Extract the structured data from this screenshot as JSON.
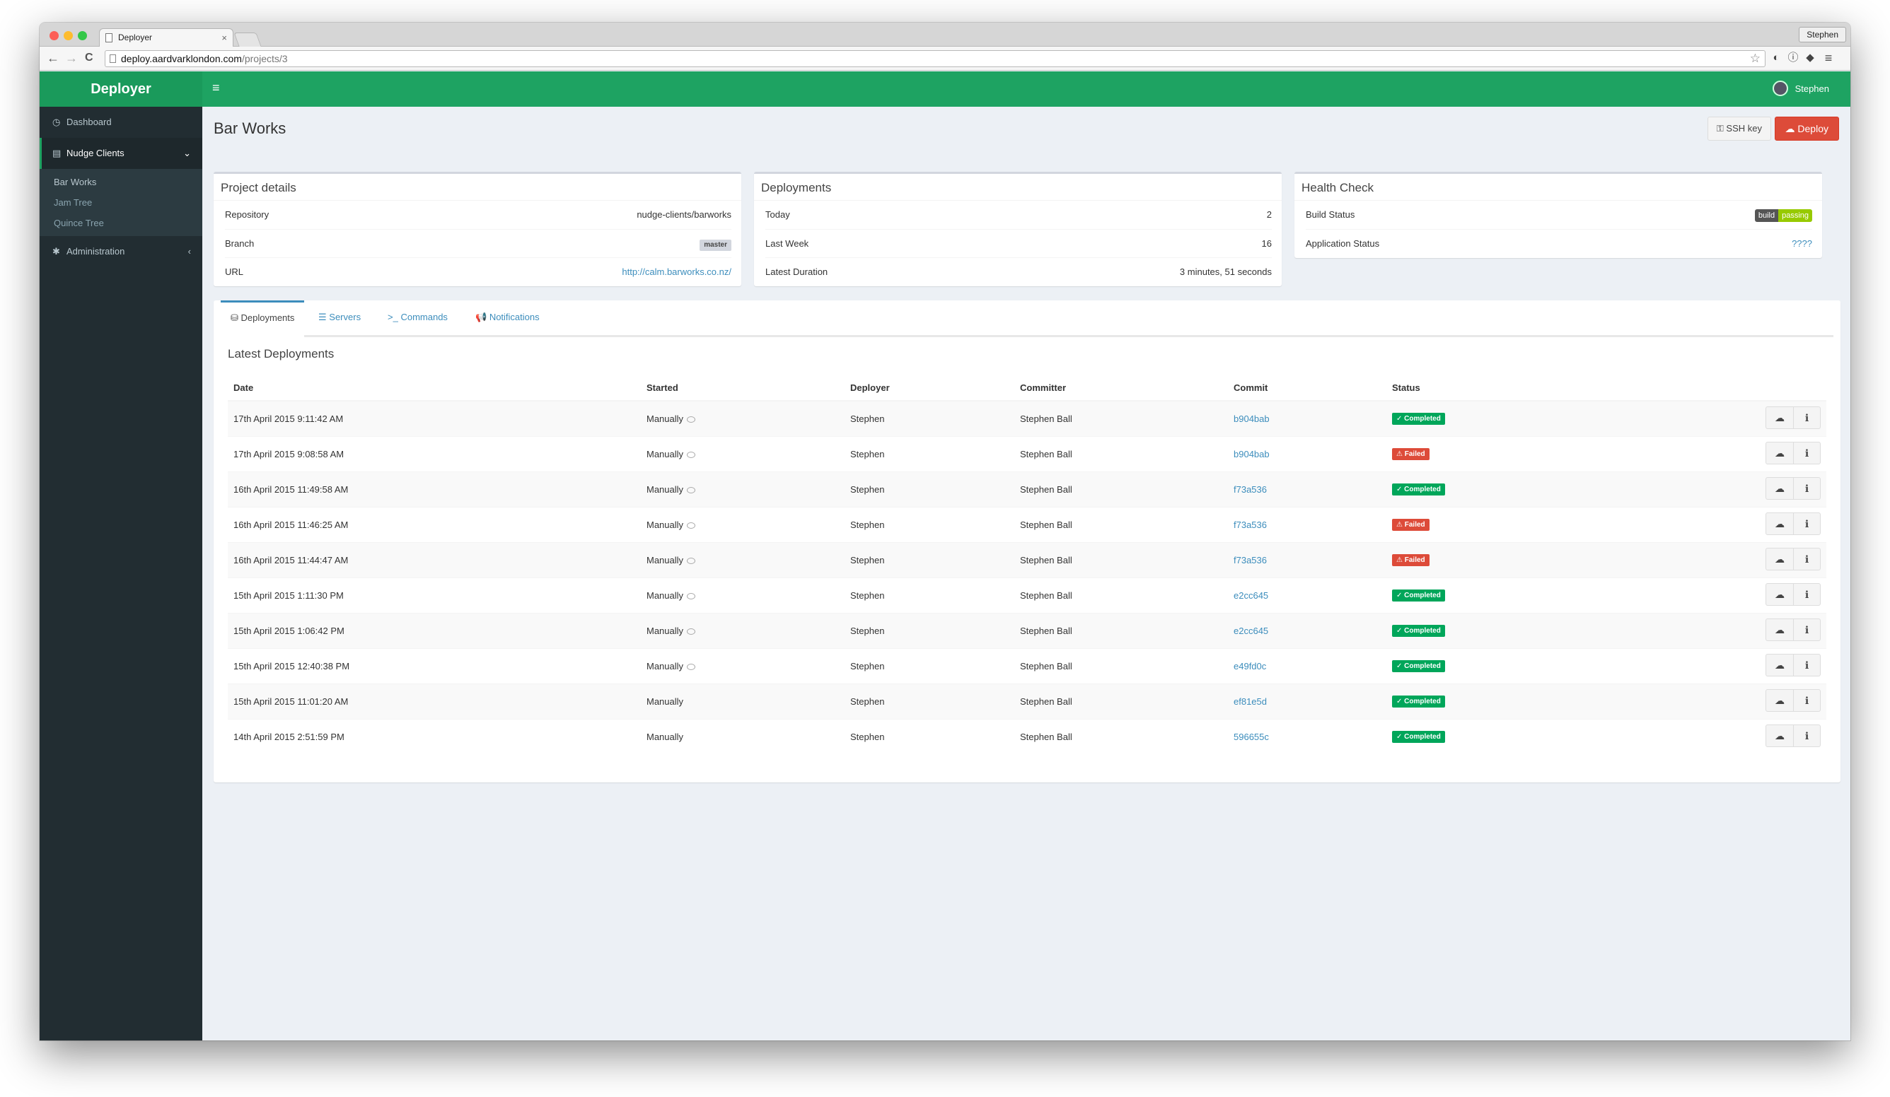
{
  "browser": {
    "tab_title": "Deployer",
    "tab_close": "×",
    "profile_name": "Stephen",
    "url_host": "deploy.aardvarklondon.com",
    "url_path": "/projects/3",
    "back_icon": "←",
    "forward_icon": "→",
    "reload_icon": "C",
    "bookmark_icon": "☆",
    "ext_icons": [
      "◐",
      "ⓘ",
      "◆",
      "≡"
    ]
  },
  "app": {
    "brand": "Deployer",
    "menu_icon": "≡",
    "user_name": "Stephen",
    "accent": "#1ea362"
  },
  "sidebar": {
    "dashboard": "Dashboard",
    "nudge_clients": "Nudge Clients",
    "projects": [
      "Bar Works",
      "Jam Tree",
      "Quince Tree"
    ],
    "administration": "Administration",
    "icons": {
      "dashboard": "◷",
      "group": "▤",
      "admin": "✱",
      "chevron_down": "⌄",
      "chevron_left": "‹"
    }
  },
  "page": {
    "title": "Bar Works",
    "ssh_key_label": "SSH key",
    "deploy_label": "Deploy",
    "ssh_icon": "⚿",
    "deploy_icon": "☁"
  },
  "project_details": {
    "title": "Project details",
    "rows": [
      {
        "label": "Repository",
        "value": "nudge-clients/barworks"
      },
      {
        "label": "Branch",
        "value": "master"
      },
      {
        "label": "URL",
        "value": "http://calm.barworks.co.nz/"
      }
    ]
  },
  "deployments_summary": {
    "title": "Deployments",
    "rows": [
      {
        "label": "Today",
        "value": "2"
      },
      {
        "label": "Last Week",
        "value": "16"
      },
      {
        "label": "Latest Duration",
        "value": "3 minutes, 51 seconds"
      }
    ]
  },
  "health_check": {
    "title": "Health Check",
    "build_status_label": "Build Status",
    "build_badge_left": "build",
    "build_badge_right": "passing",
    "app_status_label": "Application Status",
    "app_status_value": "????"
  },
  "tabs": [
    {
      "label": "Deployments",
      "icon": "⛁"
    },
    {
      "label": "Servers",
      "icon": "☰"
    },
    {
      "label": "Commands",
      "icon": ">_"
    },
    {
      "label": "Notifications",
      "icon": "📢"
    }
  ],
  "latest": {
    "title": "Latest Deployments",
    "columns": [
      "Date",
      "Started",
      "Deployer",
      "Committer",
      "Commit",
      "Status"
    ],
    "rows": [
      {
        "date": "17th April 2015 9:11:42 AM",
        "started": "Manually",
        "reason": true,
        "deployer": "Stephen",
        "committer": "Stephen Ball",
        "commit": "b904bab",
        "status": "Completed",
        "ok": true
      },
      {
        "date": "17th April 2015 9:08:58 AM",
        "started": "Manually",
        "reason": true,
        "deployer": "Stephen",
        "committer": "Stephen Ball",
        "commit": "b904bab",
        "status": "Failed",
        "ok": false
      },
      {
        "date": "16th April 2015 11:49:58 AM",
        "started": "Manually",
        "reason": true,
        "deployer": "Stephen",
        "committer": "Stephen Ball",
        "commit": "f73a536",
        "status": "Completed",
        "ok": true
      },
      {
        "date": "16th April 2015 11:46:25 AM",
        "started": "Manually",
        "reason": true,
        "deployer": "Stephen",
        "committer": "Stephen Ball",
        "commit": "f73a536",
        "status": "Failed",
        "ok": false
      },
      {
        "date": "16th April 2015 11:44:47 AM",
        "started": "Manually",
        "reason": true,
        "deployer": "Stephen",
        "committer": "Stephen Ball",
        "commit": "f73a536",
        "status": "Failed",
        "ok": false
      },
      {
        "date": "15th April 2015 1:11:30 PM",
        "started": "Manually",
        "reason": true,
        "deployer": "Stephen",
        "committer": "Stephen Ball",
        "commit": "e2cc645",
        "status": "Completed",
        "ok": true
      },
      {
        "date": "15th April 2015 1:06:42 PM",
        "started": "Manually",
        "reason": true,
        "deployer": "Stephen",
        "committer": "Stephen Ball",
        "commit": "e2cc645",
        "status": "Completed",
        "ok": true
      },
      {
        "date": "15th April 2015 12:40:38 PM",
        "started": "Manually",
        "reason": true,
        "deployer": "Stephen",
        "committer": "Stephen Ball",
        "commit": "e49fd0c",
        "status": "Completed",
        "ok": true
      },
      {
        "date": "15th April 2015 11:01:20 AM",
        "started": "Manually",
        "reason": false,
        "deployer": "Stephen",
        "committer": "Stephen Ball",
        "commit": "ef81e5d",
        "status": "Completed",
        "ok": true
      },
      {
        "date": "14th April 2015 2:51:59 PM",
        "started": "Manually",
        "reason": false,
        "deployer": "Stephen",
        "committer": "Stephen Ball",
        "commit": "596655c",
        "status": "Completed",
        "ok": true
      }
    ],
    "status_icons": {
      "ok": "✓",
      "bad": "⚠"
    },
    "action_icons": {
      "redeploy": "☁",
      "info": "ℹ"
    }
  }
}
